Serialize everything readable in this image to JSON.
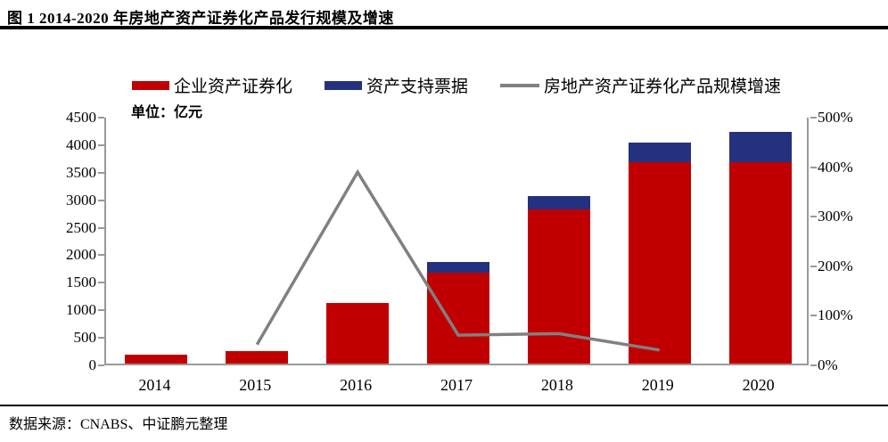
{
  "header": {
    "title": "图 1 2014-2020 年房地产资产证券化产品发行规模及增速"
  },
  "legend": {
    "items": [
      {
        "label": "企业资产证券化",
        "color": "#C00000",
        "type": "bar"
      },
      {
        "label": "资产支持票据",
        "color": "#24317F",
        "type": "bar"
      },
      {
        "label": "房地产资产证券化产品规模增速",
        "color": "#808080",
        "type": "line"
      }
    ]
  },
  "unit_label": "单位：亿元",
  "footer": {
    "source": "数据来源：CNABS、中证鹏元整理"
  },
  "chart_data": {
    "type": "bar",
    "subtype": "stacked-bars-with-growth-line",
    "title": "图 1 2014-2020 年房地产资产证券化产品发行规模及增速",
    "categories": [
      "2014",
      "2015",
      "2016",
      "2017",
      "2018",
      "2019",
      "2020"
    ],
    "series": [
      {
        "name": "企业资产证券化",
        "type": "bar",
        "stack": "total",
        "axis": "left",
        "color": "#C00000",
        "values": [
          170,
          230,
          1100,
          1650,
          2800,
          3660,
          3660
        ]
      },
      {
        "name": "资产支持票据",
        "type": "bar",
        "stack": "total",
        "axis": "left",
        "color": "#24317F",
        "values": [
          0,
          0,
          0,
          200,
          240,
          360,
          550
        ]
      },
      {
        "name": "房地产资产证券化产品规模增速",
        "type": "line",
        "axis": "right",
        "color": "#808080",
        "values": [
          null,
          42,
          390,
          61,
          64,
          31,
          null
        ]
      }
    ],
    "left_axis": {
      "label": "单位：亿元",
      "min": 0,
      "max": 4500,
      "step": 500
    },
    "right_axis": {
      "min": 0,
      "max": 500,
      "step": 100,
      "suffix": "%"
    },
    "grid": false,
    "legend_position": "top",
    "axis_color": "#999999"
  }
}
